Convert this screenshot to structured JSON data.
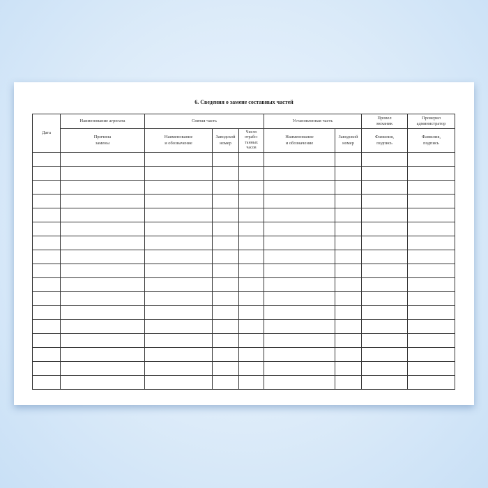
{
  "title": "6. Сведения о замене составных частей",
  "headers": {
    "date": "Дата",
    "unit_name": "Наименование агрегата",
    "removed_part": "Снятая часть",
    "installed_part": "Установленная  часть",
    "mechanic": "Провел\nмеханик",
    "administrator": "Проверил\nадминистратор",
    "reason": "Причина\nзамены",
    "removed_name": "Наименование\nи обозначение",
    "removed_serial": "Заводской\nномер",
    "removed_hours": "Число\nотрабо-\nтанных\nчасов",
    "installed_name": "Наименование\nи обозначение",
    "installed_serial": "Заводской\nномер",
    "mechanic_sign": "Фамилия,\nподпись",
    "administrator_sign": "Фамилия,\nподпись"
  },
  "row_count": 17
}
